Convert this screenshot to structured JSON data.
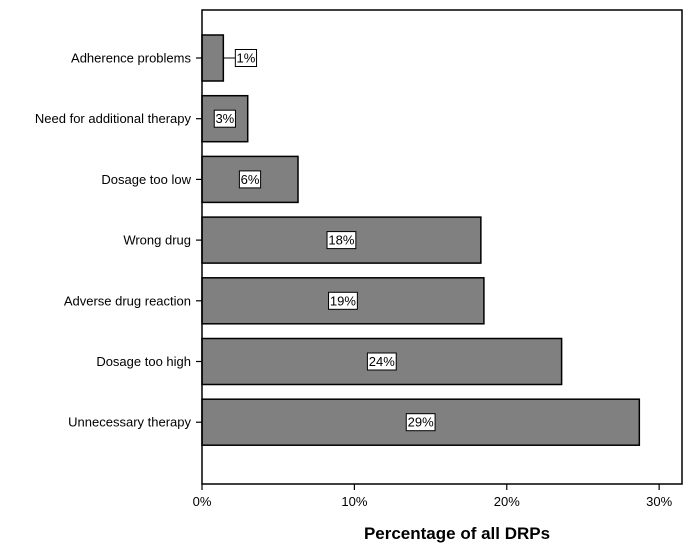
{
  "chart_data": {
    "type": "bar",
    "orientation": "horizontal",
    "categories": [
      "Adherence problems",
      "Need for additional therapy",
      "Dosage too low",
      "Wrong drug",
      "Adverse drug reaction",
      "Dosage too high",
      "Unnecessary therapy"
    ],
    "values": [
      1.4,
      3.0,
      6.3,
      18.3,
      18.5,
      23.6,
      28.7
    ],
    "data_labels": [
      "1%",
      "3%",
      "6%",
      "18%",
      "19%",
      "24%",
      "29%"
    ],
    "x_ticks": [
      "0%",
      "10%",
      "20%",
      "30%"
    ],
    "x_tick_values": [
      0,
      10,
      20,
      30
    ],
    "xlabel": "Percentage of all DRPs",
    "ylabel": "",
    "title": "",
    "xlim": [
      0,
      31.5
    ],
    "grid": false,
    "legend": "none",
    "bar_color": "#808080",
    "bar_edge_color": "#000000"
  }
}
